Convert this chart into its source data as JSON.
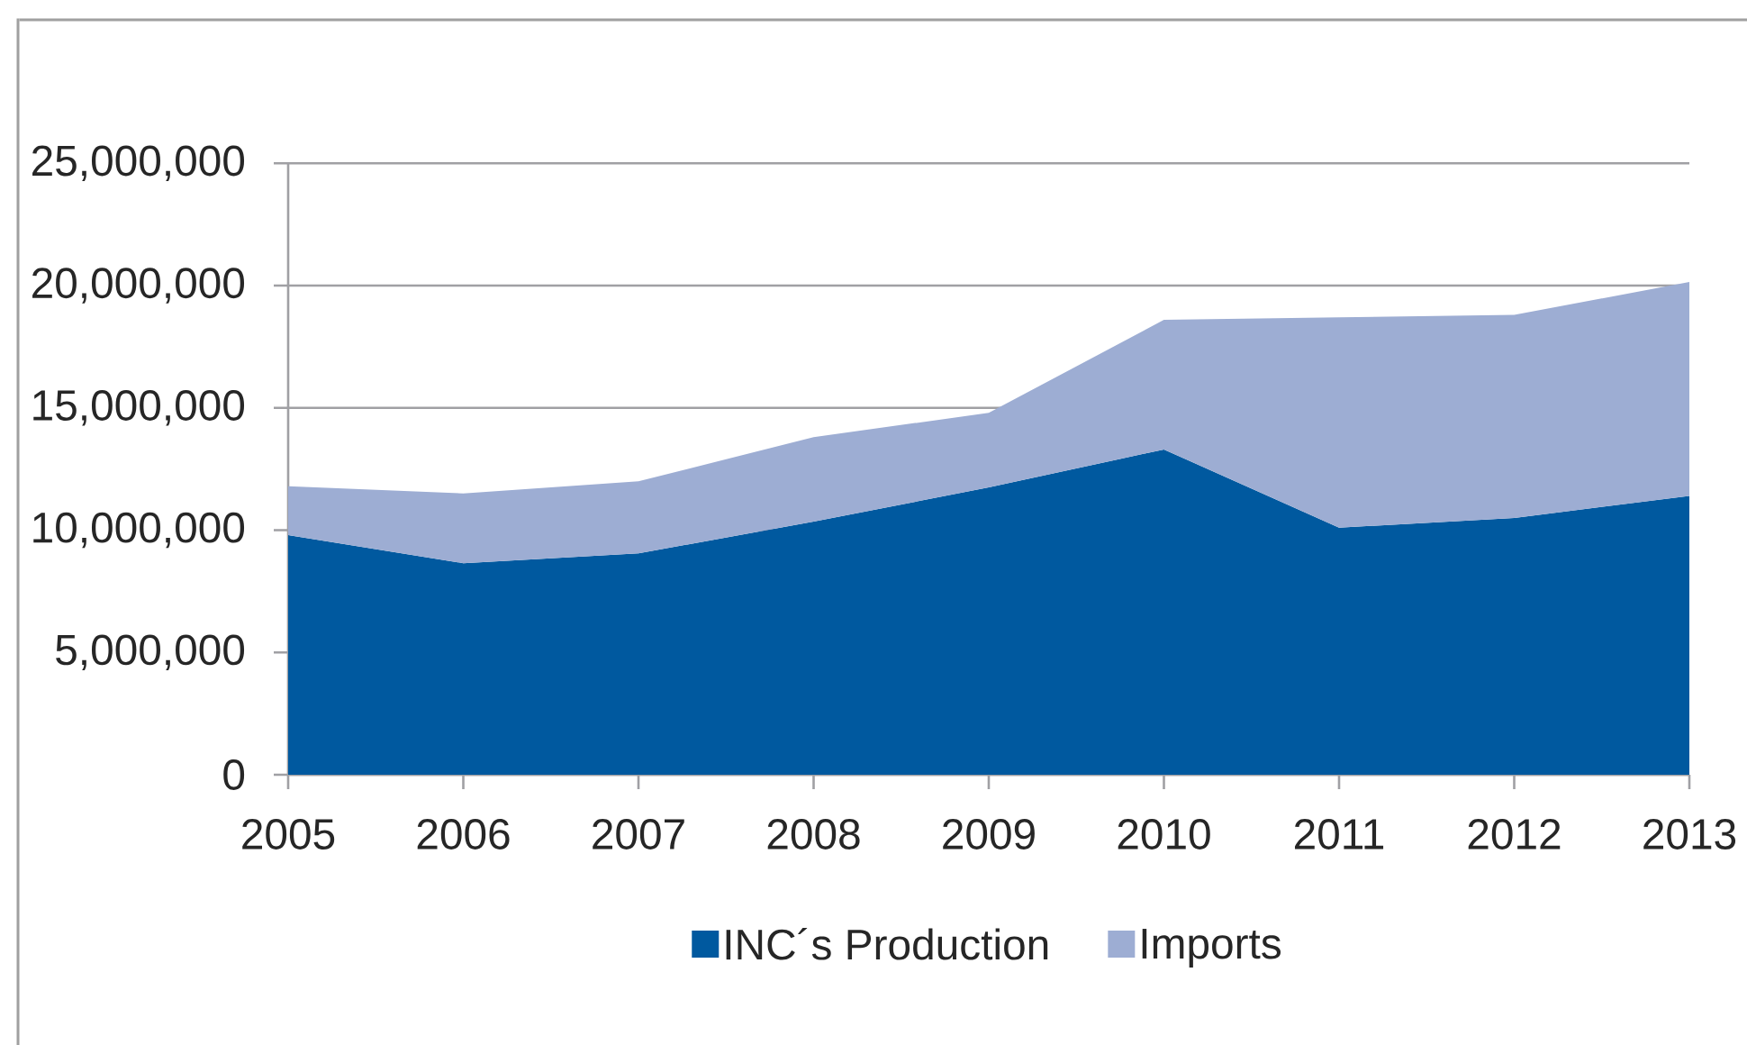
{
  "chart_data": {
    "type": "area",
    "stacked": true,
    "categories": [
      "2005",
      "2006",
      "2007",
      "2008",
      "2009",
      "2010",
      "2011",
      "2012",
      "2013"
    ],
    "series": [
      {
        "name": "INC´s Production",
        "color": "#00599f",
        "values": [
          9800000,
          8650000,
          9050000,
          10350000,
          11750000,
          13300000,
          10100000,
          10500000,
          11400000
        ]
      },
      {
        "name": "Imports",
        "color": "#9dadd3",
        "values": [
          2000000,
          2850000,
          2950000,
          3450000,
          3050000,
          5300000,
          8600000,
          8300000,
          8750000
        ]
      }
    ],
    "ylim": [
      0,
      25000000
    ],
    "yticks": [
      {
        "value": 0,
        "label": "0"
      },
      {
        "value": 5000000,
        "label": "5,000,000"
      },
      {
        "value": 10000000,
        "label": "10,000,000"
      },
      {
        "value": 15000000,
        "label": "15,000,000"
      },
      {
        "value": 20000000,
        "label": "20,000,000"
      },
      {
        "value": 25000000,
        "label": "25,000,000"
      }
    ],
    "grid": "y",
    "legend": "bottom"
  }
}
